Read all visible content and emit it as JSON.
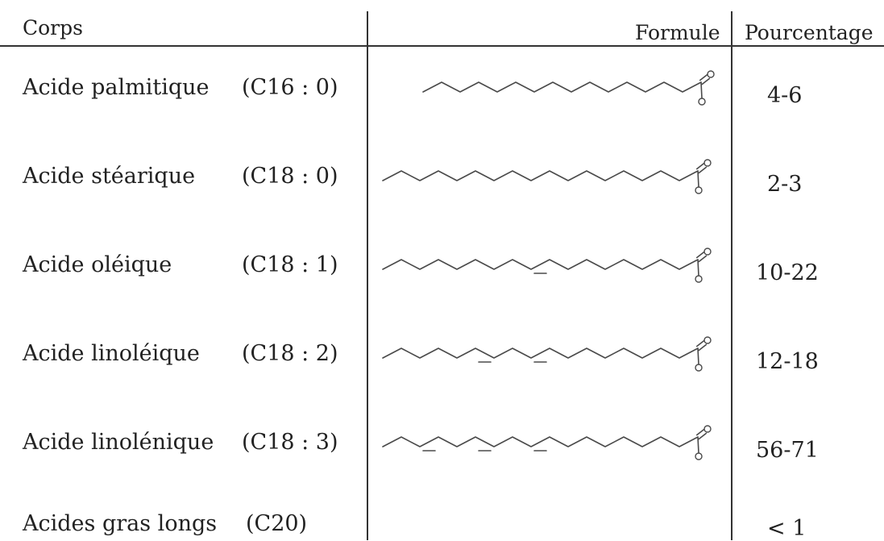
{
  "table": {
    "headers": {
      "name": "Corps",
      "formula": "Formule",
      "percent": "Pourcentage"
    },
    "rows": [
      {
        "name": "Acide palmitique",
        "notation": "(C16 : 0)",
        "percent": "4-6",
        "carbons": 16,
        "double_bonds": []
      },
      {
        "name": "Acide stéarique",
        "notation": "(C18 : 0)",
        "percent": "2-3",
        "carbons": 18,
        "double_bonds": []
      },
      {
        "name": "Acide oléique",
        "notation": "(C18 : 1)",
        "percent": "10-22",
        "carbons": 18,
        "double_bonds": [
          9
        ]
      },
      {
        "name": "Acide linoléique",
        "notation": "(C18 : 2)",
        "percent": "12-18",
        "carbons": 18,
        "double_bonds": [
          9,
          12
        ]
      },
      {
        "name": "Acide linolénique",
        "notation": "(C18 : 3)",
        "percent": "56-71",
        "carbons": 18,
        "double_bonds": [
          9,
          12,
          15
        ]
      },
      {
        "name": "Acides gras longs",
        "notation": "(C20)",
        "percent": "< 1",
        "carbons": null,
        "double_bonds": []
      }
    ]
  }
}
